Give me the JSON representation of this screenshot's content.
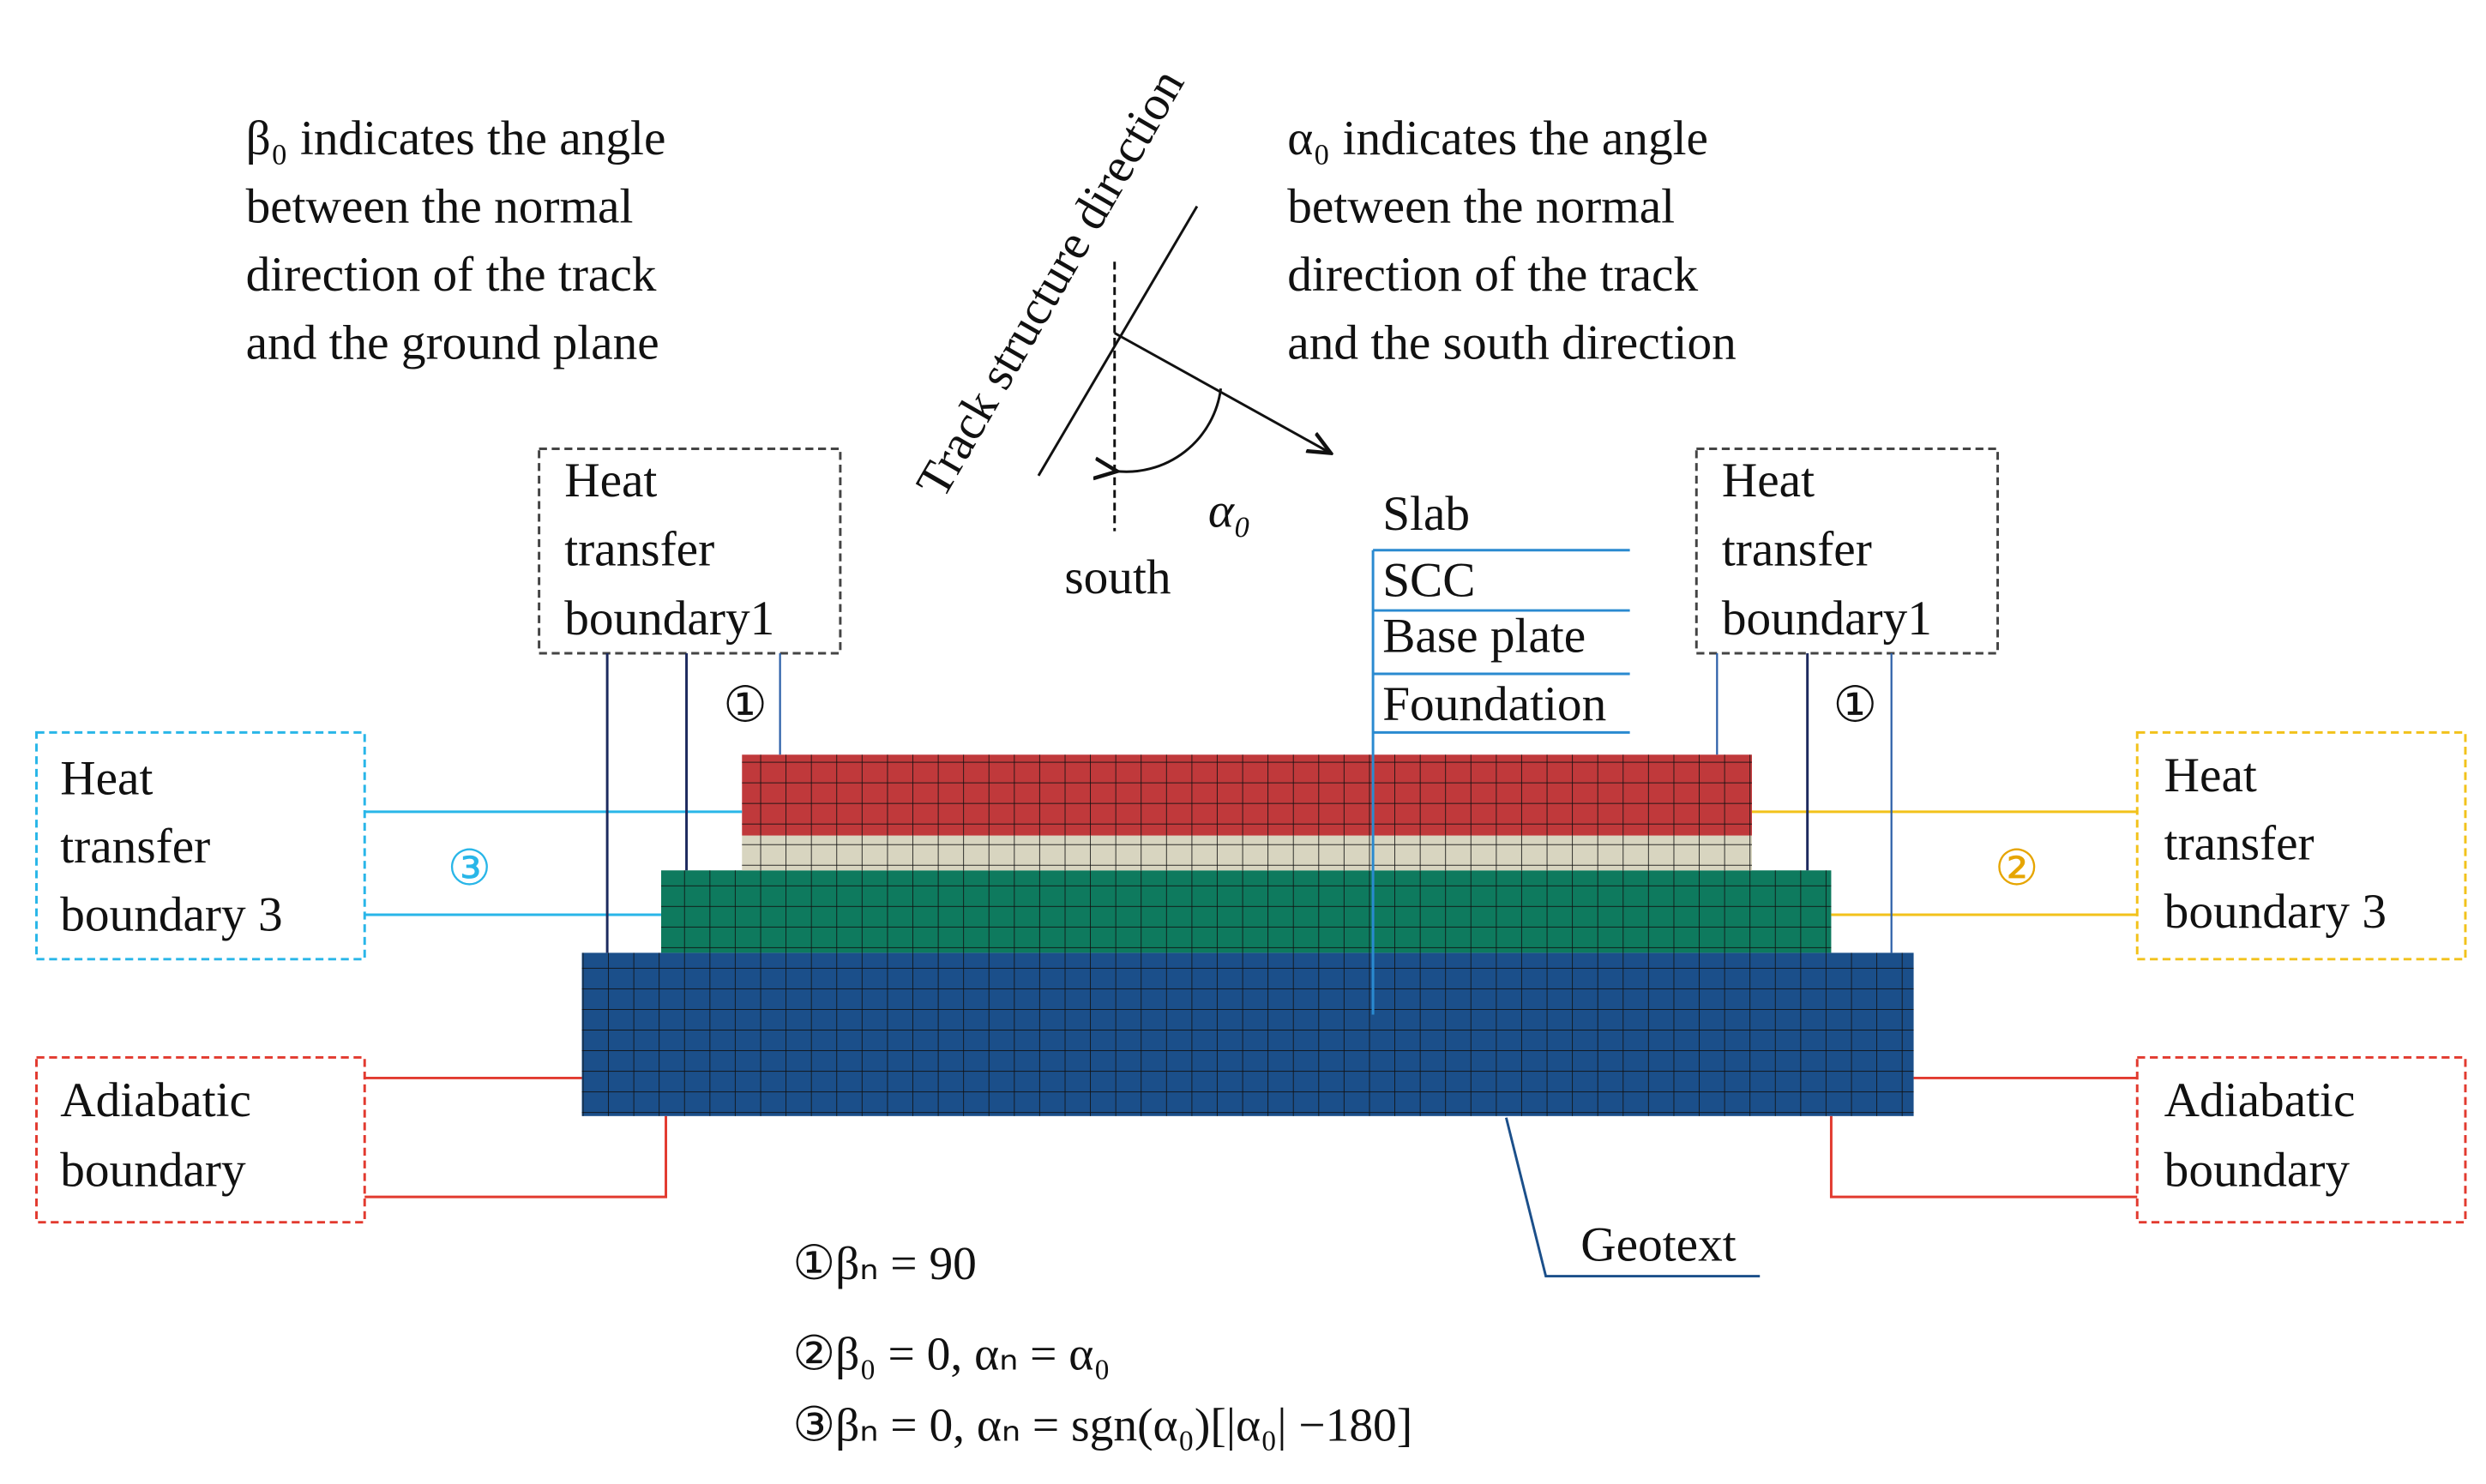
{
  "notes": {
    "beta": [
      "β₀ indicates the angle",
      "between  the normal",
      "direction of the track",
      "and the ground plane"
    ],
    "alpha": [
      "α₀ indicates the angle",
      "between  the normal",
      "direction of the track",
      "and the south direction"
    ]
  },
  "compass": {
    "track_direction": "Track structure direction",
    "angle": "α₀",
    "south": "south"
  },
  "layers": [
    "Slab",
    "SCC",
    "Base plate",
    "Foundation"
  ],
  "geotext": "Geotext",
  "boundaries": {
    "top_left": [
      "Heat",
      "transfer",
      "boundary1"
    ],
    "top_right": [
      "Heat",
      "transfer",
      "boundary1"
    ],
    "side_left": [
      "Heat",
      "transfer",
      "boundary 3"
    ],
    "side_right": [
      "Heat",
      "transfer",
      "boundary 3"
    ],
    "bottom_left": [
      "Adiabatic",
      "boundary"
    ],
    "bottom_right": [
      "Adiabatic",
      "boundary"
    ]
  },
  "markers": {
    "top_left": "①",
    "top_right": "①",
    "side_left": "③",
    "side_right": "②"
  },
  "formulas": [
    "①βₙ = 90",
    "②β₀ = 0,  αₙ = α₀",
    "③βₙ = 0,  αₙ = sgn(α₀)[|α₀| −180]"
  ]
}
